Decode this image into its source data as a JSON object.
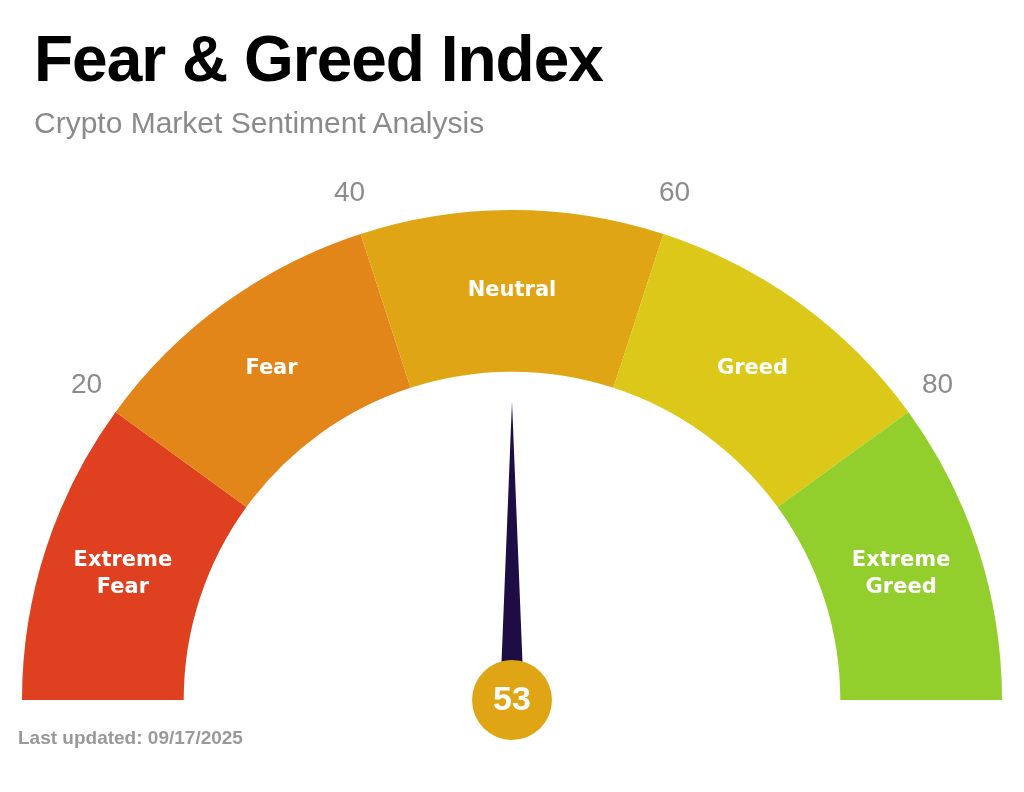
{
  "chart_data": {
    "type": "donut",
    "title": "Fear & Greed Index",
    "subtitle": "Crypto Market Sentiment Analysis",
    "categories": [
      "Extreme Fear",
      "Fear",
      "Neutral",
      "Greed",
      "Extreme Greed"
    ],
    "values": [
      20,
      20,
      20,
      20,
      20
    ],
    "colors": [
      "#de4020",
      "#e3861a",
      "#e0a514",
      "#dcc818",
      "#92cf2c"
    ],
    "needle": "Neutral",
    "annotations": [
      "20",
      "40",
      "60",
      "80",
      "53",
      "Last updated: 09/17/2025"
    ]
  }
}
